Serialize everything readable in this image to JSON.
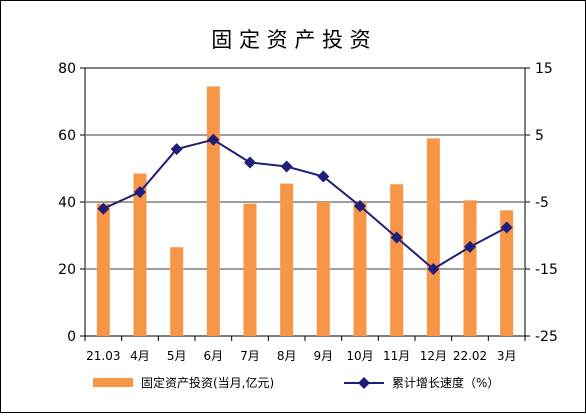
{
  "chart_data": {
    "type": "bar+line",
    "title": "固 定 资 产 投 资",
    "categories": [
      "21.03",
      "4月",
      "5月",
      "6月",
      "7月",
      "8月",
      "9月",
      "10月",
      "11月",
      "12月",
      "22.02",
      "3月"
    ],
    "series": [
      {
        "name": "固定资产投资(当月,亿元)",
        "type": "bar",
        "axis": "left",
        "color": "#F79646",
        "values": [
          39.5,
          48.5,
          26.5,
          74.5,
          39.5,
          45.5,
          40,
          40,
          45.3,
          59,
          40.5,
          37.5
        ]
      },
      {
        "name": "累计增长速度（%）",
        "type": "line",
        "axis": "right",
        "color": "#1F1F7A",
        "values": [
          -6,
          -3.5,
          2.9,
          4.3,
          0.9,
          0.3,
          -1.2,
          -5.6,
          -10.3,
          -15,
          -11.7,
          -8.8
        ]
      }
    ],
    "y_left": {
      "min": 0,
      "max": 80,
      "ticks": [
        0,
        20,
        40,
        60,
        80
      ]
    },
    "y_right": {
      "min": -25,
      "max": 15,
      "ticks": [
        15,
        5,
        -5,
        -15,
        -25
      ]
    },
    "gridlines": [
      20,
      40,
      60
    ],
    "legend": "bottom"
  }
}
